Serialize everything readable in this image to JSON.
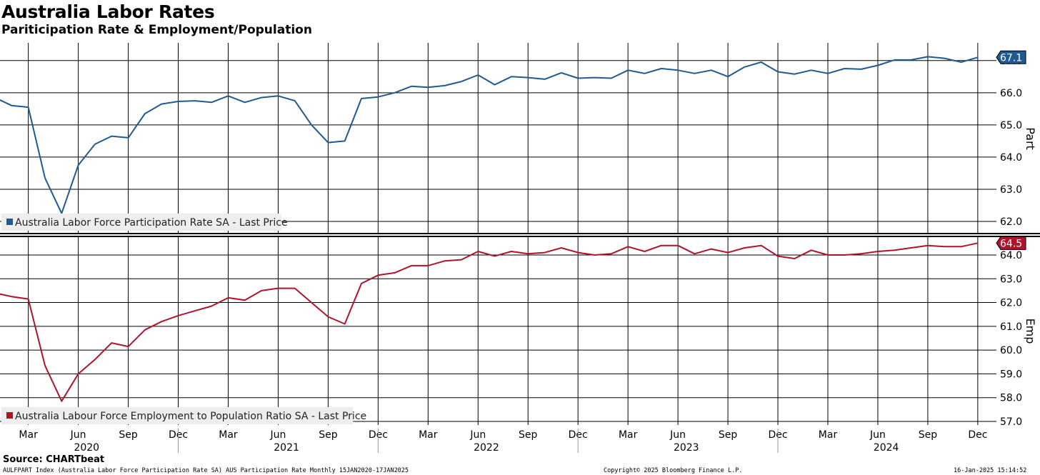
{
  "title": "Australia Labor Rates",
  "subtitle": "Pariticipation Rate & Employment/Population",
  "source": "Source: CHARTbeat",
  "footer": {
    "left": "AULFPART Index (Australia Labor Force Participation Rate SA) AUS Participation Rate  Monthly 15JAN2020-17JAN2025",
    "center": "Copyright© 2025 Bloomberg Finance L.P.",
    "right": "16-Jan-2025 15:14:52"
  },
  "colors": {
    "participation": "#1f5a93",
    "employment": "#b0142a",
    "grid": "#000000",
    "legend_bg": "#eeeeee"
  },
  "chart_data": [
    {
      "type": "line",
      "panel": "top",
      "ylabel": "Part",
      "ylim": [
        61.6,
        67.55
      ],
      "y_ticks": [
        "62.0",
        "63.0",
        "64.0",
        "65.0",
        "66.0",
        "67.0"
      ],
      "last_value_label": "67.1",
      "x_month_labels": [
        "Mar",
        "Jun",
        "Sep",
        "Dec",
        "Mar",
        "Jun",
        "Sep",
        "Dec",
        "Mar",
        "Jun",
        "Sep",
        "Dec",
        "Mar",
        "Jun",
        "Sep",
        "Dec",
        "Mar",
        "Jun",
        "Sep",
        "Dec"
      ],
      "x_year_labels": [
        "2020",
        "2021",
        "2022",
        "2023",
        "2024"
      ],
      "x": [
        "2020-01",
        "2020-02",
        "2020-03",
        "2020-04",
        "2020-05",
        "2020-06",
        "2020-07",
        "2020-08",
        "2020-09",
        "2020-10",
        "2020-11",
        "2020-12",
        "2021-01",
        "2021-02",
        "2021-03",
        "2021-04",
        "2021-05",
        "2021-06",
        "2021-07",
        "2021-08",
        "2021-09",
        "2021-10",
        "2021-11",
        "2021-12",
        "2022-01",
        "2022-02",
        "2022-03",
        "2022-04",
        "2022-05",
        "2022-06",
        "2022-07",
        "2022-08",
        "2022-09",
        "2022-10",
        "2022-11",
        "2022-12",
        "2023-01",
        "2023-02",
        "2023-03",
        "2023-04",
        "2023-05",
        "2023-06",
        "2023-07",
        "2023-08",
        "2023-09",
        "2023-10",
        "2023-11",
        "2023-12",
        "2024-01",
        "2024-02",
        "2024-03",
        "2024-04",
        "2024-05",
        "2024-06",
        "2024-07",
        "2024-08",
        "2024-09",
        "2024-10",
        "2024-11",
        "2024-12"
      ],
      "series": [
        {
          "name": "Australia Labor Force Participation Rate SA - Last Price",
          "values": [
            65.85,
            65.6,
            65.55,
            63.35,
            62.25,
            63.75,
            64.4,
            64.65,
            64.6,
            65.35,
            65.65,
            65.73,
            65.75,
            65.7,
            65.9,
            65.7,
            65.85,
            65.9,
            65.75,
            65.0,
            64.45,
            64.5,
            65.82,
            65.87,
            66.0,
            66.2,
            66.17,
            66.22,
            66.35,
            66.55,
            66.25,
            66.5,
            66.47,
            66.42,
            66.62,
            66.45,
            66.47,
            66.45,
            66.7,
            66.6,
            66.75,
            66.7,
            66.6,
            66.7,
            66.5,
            66.8,
            66.95,
            66.65,
            66.58,
            66.7,
            66.6,
            66.75,
            66.73,
            66.85,
            67.02,
            67.02,
            67.12,
            67.07,
            66.95,
            67.1
          ]
        }
      ]
    },
    {
      "type": "line",
      "panel": "bottom",
      "ylabel": "Emp",
      "ylim": [
        56.85,
        64.75
      ],
      "y_ticks": [
        "57.0",
        "58.0",
        "59.0",
        "60.0",
        "61.0",
        "62.0",
        "63.0",
        "64.0"
      ],
      "last_value_label": "64.5",
      "x_month_labels": [
        "Mar",
        "Jun",
        "Sep",
        "Dec",
        "Mar",
        "Jun",
        "Sep",
        "Dec",
        "Mar",
        "Jun",
        "Sep",
        "Dec",
        "Mar",
        "Jun",
        "Sep",
        "Dec",
        "Mar",
        "Jun",
        "Sep",
        "Dec"
      ],
      "x_year_labels": [
        "2020",
        "2021",
        "2022",
        "2023",
        "2024"
      ],
      "x": [
        "2020-01",
        "2020-02",
        "2020-03",
        "2020-04",
        "2020-05",
        "2020-06",
        "2020-07",
        "2020-08",
        "2020-09",
        "2020-10",
        "2020-11",
        "2020-12",
        "2021-01",
        "2021-02",
        "2021-03",
        "2021-04",
        "2021-05",
        "2021-06",
        "2021-07",
        "2021-08",
        "2021-09",
        "2021-10",
        "2021-11",
        "2021-12",
        "2022-01",
        "2022-02",
        "2022-03",
        "2022-04",
        "2022-05",
        "2022-06",
        "2022-07",
        "2022-08",
        "2022-09",
        "2022-10",
        "2022-11",
        "2022-12",
        "2023-01",
        "2023-02",
        "2023-03",
        "2023-04",
        "2023-05",
        "2023-06",
        "2023-07",
        "2023-08",
        "2023-09",
        "2023-10",
        "2023-11",
        "2023-12",
        "2024-01",
        "2024-02",
        "2024-03",
        "2024-04",
        "2024-05",
        "2024-06",
        "2024-07",
        "2024-08",
        "2024-09",
        "2024-10",
        "2024-11",
        "2024-12"
      ],
      "series": [
        {
          "name": "Australia Labour Force Employment to Population Ratio SA - Last Price",
          "values": [
            62.4,
            62.25,
            62.15,
            59.35,
            57.85,
            59.0,
            59.6,
            60.3,
            60.15,
            60.85,
            61.2,
            61.45,
            61.65,
            61.85,
            62.2,
            62.1,
            62.5,
            62.6,
            62.6,
            62.0,
            61.4,
            61.1,
            62.8,
            63.15,
            63.25,
            63.55,
            63.55,
            63.75,
            63.8,
            64.15,
            63.95,
            64.15,
            64.05,
            64.1,
            64.3,
            64.1,
            64.0,
            64.05,
            64.35,
            64.15,
            64.4,
            64.4,
            64.05,
            64.25,
            64.1,
            64.3,
            64.4,
            63.95,
            63.85,
            64.2,
            64.0,
            64.0,
            64.05,
            64.15,
            64.2,
            64.3,
            64.4,
            64.35,
            64.35,
            64.5
          ]
        }
      ]
    }
  ]
}
